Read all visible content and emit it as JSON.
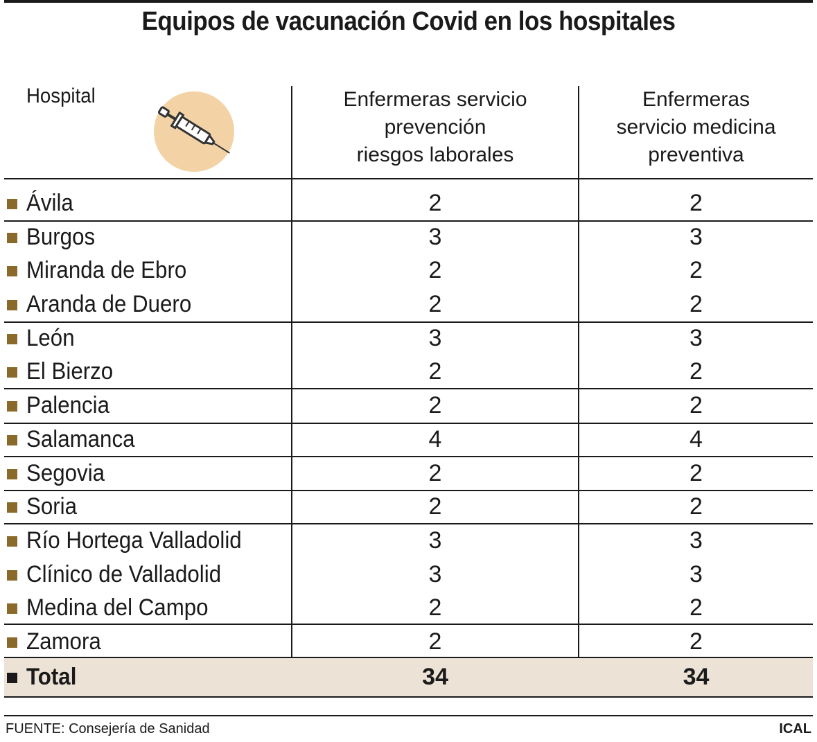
{
  "title": "Equipos de vacunación Covid en los hospitales",
  "table": {
    "headers": {
      "hospital": "Hospital",
      "col1": "Enfermeras servicio\nprevención\nriesgos laborales",
      "col2": "Enfermeras\nservicio medicina\npreventiva"
    },
    "rows": [
      {
        "name": "Ávila",
        "v1": "2",
        "v2": "2"
      },
      {
        "name": "Burgos",
        "v1": "3",
        "v2": "3"
      },
      {
        "name": "Miranda de Ebro",
        "v1": "2",
        "v2": "2"
      },
      {
        "name": "Aranda de Duero",
        "v1": "2",
        "v2": "2"
      },
      {
        "name": "León",
        "v1": "3",
        "v2": "3"
      },
      {
        "name": "El Bierzo",
        "v1": "2",
        "v2": "2"
      },
      {
        "name": "Palencia",
        "v1": "2",
        "v2": "2"
      },
      {
        "name": "Salamanca",
        "v1": "4",
        "v2": "4"
      },
      {
        "name": "Segovia",
        "v1": "2",
        "v2": "2"
      },
      {
        "name": "Soria",
        "v1": "2",
        "v2": "2"
      },
      {
        "name": "Río Hortega Valladolid",
        "v1": "3",
        "v2": "3"
      },
      {
        "name": "Clínico de Valladolid",
        "v1": "3",
        "v2": "3"
      },
      {
        "name": "Medina del Campo",
        "v1": "2",
        "v2": "2"
      },
      {
        "name": "Zamora",
        "v1": "2",
        "v2": "2"
      }
    ],
    "total": {
      "name": "Total",
      "v1": "34",
      "v2": "34"
    }
  },
  "footer": {
    "source": "FUENTE: Consejería de Sanidad",
    "credit": "ICAL"
  },
  "colors": {
    "bullet": "#8a6a2a",
    "total_background": "#ece3d6",
    "icon_circle": "#f0c890"
  },
  "icons": {
    "header_illustration": "syringe-icon"
  }
}
